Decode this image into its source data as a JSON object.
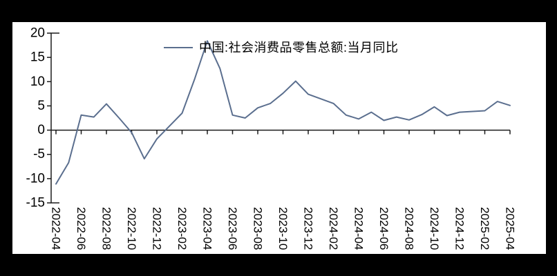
{
  "colors": {
    "series": "#5a6e8e",
    "axis": "#1a1a1a",
    "text": "#000000",
    "background": "#ffffff",
    "frame": "#000000"
  },
  "legend": {
    "label": "中国:社会消费品零售总额:当月同比"
  },
  "chart_data": {
    "type": "line",
    "title": "",
    "xlabel": "",
    "ylabel": "",
    "grid": false,
    "legend_position": "top-center",
    "ylim": [
      -15,
      20
    ],
    "y_ticks": [
      20,
      15,
      10,
      5,
      0,
      -5,
      -10,
      -15
    ],
    "x_tick_labels": [
      "2022-04",
      "2022-06",
      "2022-08",
      "2022-10",
      "2022-12",
      "2023-02",
      "2023-04",
      "2023-06",
      "2023-08",
      "2023-10",
      "2023-12",
      "2024-02",
      "2024-04",
      "2024-06",
      "2024-08",
      "2024-10",
      "2024-12",
      "2025-02",
      "2025-04"
    ],
    "series": [
      {
        "name": "中国:社会消费品零售总额:当月同比",
        "x": [
          "2022-04",
          "2022-05",
          "2022-06",
          "2022-07",
          "2022-08",
          "2022-09",
          "2022-10",
          "2022-11",
          "2022-12",
          "2023-02",
          "2023-03",
          "2023-04",
          "2023-05",
          "2023-06",
          "2023-07",
          "2023-08",
          "2023-09",
          "2023-10",
          "2023-11",
          "2023-12",
          "2024-02",
          "2024-03",
          "2024-04",
          "2024-05",
          "2024-06",
          "2024-07",
          "2024-08",
          "2024-09",
          "2024-10",
          "2024-11",
          "2024-12",
          "2025-02",
          "2025-03",
          "2025-04"
        ],
        "y": [
          -11.1,
          -6.7,
          3.1,
          2.7,
          5.4,
          2.5,
          -0.5,
          -5.9,
          -1.8,
          3.5,
          10.6,
          18.4,
          12.7,
          3.1,
          2.5,
          4.6,
          5.5,
          7.6,
          10.1,
          7.4,
          5.5,
          3.1,
          2.3,
          3.7,
          2.0,
          2.7,
          2.1,
          3.2,
          4.8,
          3.0,
          3.7,
          4.0,
          5.9,
          5.1
        ]
      }
    ]
  }
}
